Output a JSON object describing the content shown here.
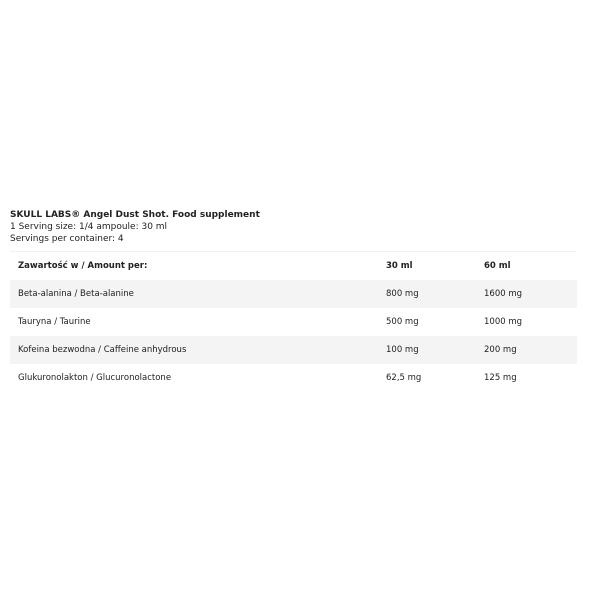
{
  "intro": {
    "title": "SKULL LABS® Angel Dust Shot. Food supplement",
    "serving": "1 Serving size: 1/4 ampoule: 30 ml",
    "servings": "Servings per container: 4"
  },
  "table": {
    "headers": [
      "Zawartość w / Amount per:",
      "30 ml",
      "60 ml"
    ],
    "rows": [
      [
        "Beta-alanina / Beta-alanine",
        "800 mg",
        "1600 mg"
      ],
      [
        "Tauryna / Taurine",
        "500 mg",
        "1000 mg"
      ],
      [
        "Kofeina bezwodna / Caffeine anhydrous",
        "100 mg",
        "200 mg"
      ],
      [
        "Glukuronolakton / Glucuronolactone",
        "62,5 mg",
        "125 mg"
      ]
    ]
  }
}
